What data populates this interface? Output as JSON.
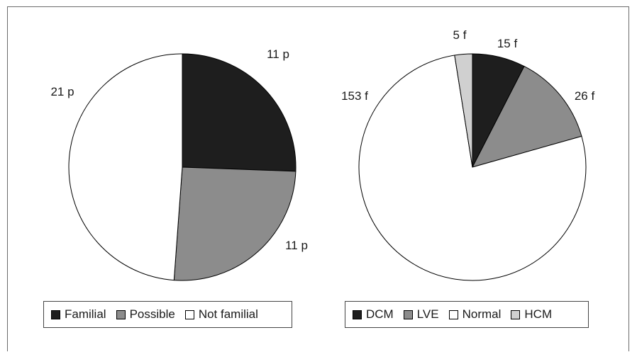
{
  "chart_data": [
    {
      "type": "pie",
      "title": "",
      "categories": [
        "Familial",
        "Possible",
        "Not familial"
      ],
      "values": [
        11,
        11,
        21
      ],
      "labels": [
        "11 p",
        "11 p",
        "21 p"
      ],
      "colors": [
        "#1e1e1e",
        "#8c8c8c",
        "#ffffff"
      ],
      "start_angle_deg": 0,
      "direction": "clockwise",
      "legend": {
        "position": "bottom",
        "items": [
          {
            "label": "Familial",
            "color": "#1e1e1e"
          },
          {
            "label": "Possible",
            "color": "#8c8c8c"
          },
          {
            "label": "Not familial",
            "color": "#ffffff"
          }
        ]
      }
    },
    {
      "type": "pie",
      "title": "",
      "categories": [
        "DCM",
        "LVE",
        "Normal",
        "HCM"
      ],
      "values": [
        15,
        26,
        153,
        5
      ],
      "labels": [
        "15 f",
        "26 f",
        "153 f",
        "5 f"
      ],
      "colors": [
        "#1e1e1e",
        "#8c8c8c",
        "#ffffff",
        "#d0d0d0"
      ],
      "start_angle_deg": 0,
      "direction": "clockwise",
      "legend": {
        "position": "bottom",
        "items": [
          {
            "label": "DCM",
            "color": "#1e1e1e"
          },
          {
            "label": "LVE",
            "color": "#8c8c8c"
          },
          {
            "label": "Normal",
            "color": "#ffffff"
          },
          {
            "label": "HCM",
            "color": "#d0d0d0"
          }
        ]
      }
    }
  ]
}
